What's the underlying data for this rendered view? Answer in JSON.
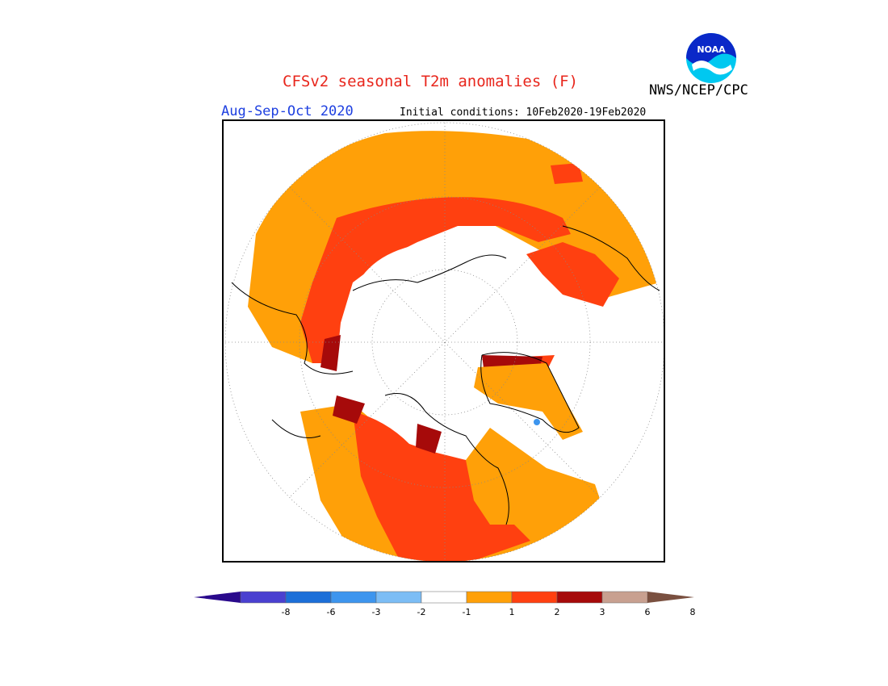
{
  "header": {
    "title": "CFSv2 seasonal T2m anomalies (F)",
    "agency": "NWS/NCEP/CPC",
    "season": "Aug-Sep-Oct 2020",
    "initial_conditions": "Initial conditions: 10Feb2020-19Feb2020"
  },
  "logo": {
    "icon": "noaa-logo",
    "text": "NOAA"
  },
  "colorbar": {
    "ticks": [
      "-8",
      "-6",
      "-3",
      "-2",
      "-1",
      "1",
      "2",
      "3",
      "6",
      "8"
    ],
    "colors": [
      "#2a0a8c",
      "#4a40d0",
      "#1c6fd8",
      "#3d95ee",
      "#7cbdf5",
      "#ffffff",
      "#ffa008",
      "#ff4010",
      "#a60a0a",
      "#c8a090",
      "#7a5040"
    ]
  },
  "colors": {
    "title": "#e8261c",
    "season": "#1d3fe0",
    "anomaly_1_2": "#ffa008",
    "anomaly_2_3": "#ff4010",
    "anomaly_3_6": "#a60a0a"
  }
}
